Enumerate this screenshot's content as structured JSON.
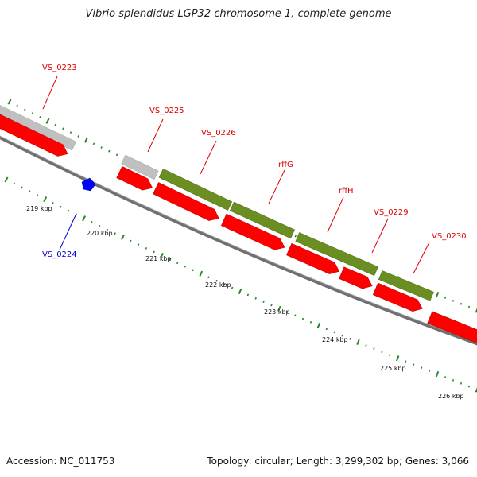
{
  "title": "Vibrio splendidus LGP32 chromosome 1, complete genome",
  "footer": {
    "accession": "Accession: NC_011753",
    "summary": "Topology: circular; Length: 3,299,302 bp; Genes: 3,066"
  },
  "colors": {
    "gene_red": "#ff0000",
    "gene_grey": "#c0c0c0",
    "gene_green": "#6b8e23",
    "label_red": "#e00000",
    "label_blue": "#0000d0",
    "tick_green": "#228b22",
    "backbone": "#808080"
  },
  "gene_labels": [
    {
      "text": "VS_0223",
      "color": "red"
    },
    {
      "text": "VS_0225",
      "color": "red"
    },
    {
      "text": "VS_0226",
      "color": "red"
    },
    {
      "text": "rffG",
      "color": "red"
    },
    {
      "text": "rffH",
      "color": "red"
    },
    {
      "text": "VS_0229",
      "color": "red"
    },
    {
      "text": "VS_0230",
      "color": "red"
    },
    {
      "text": "VS_0224",
      "color": "blue"
    }
  ],
  "scale_labels": [
    "219 kbp",
    "220 kbp",
    "221 kbp",
    "222 kbp",
    "223 kbp",
    "224 kbp",
    "225 kbp",
    "226 kbp"
  ]
}
